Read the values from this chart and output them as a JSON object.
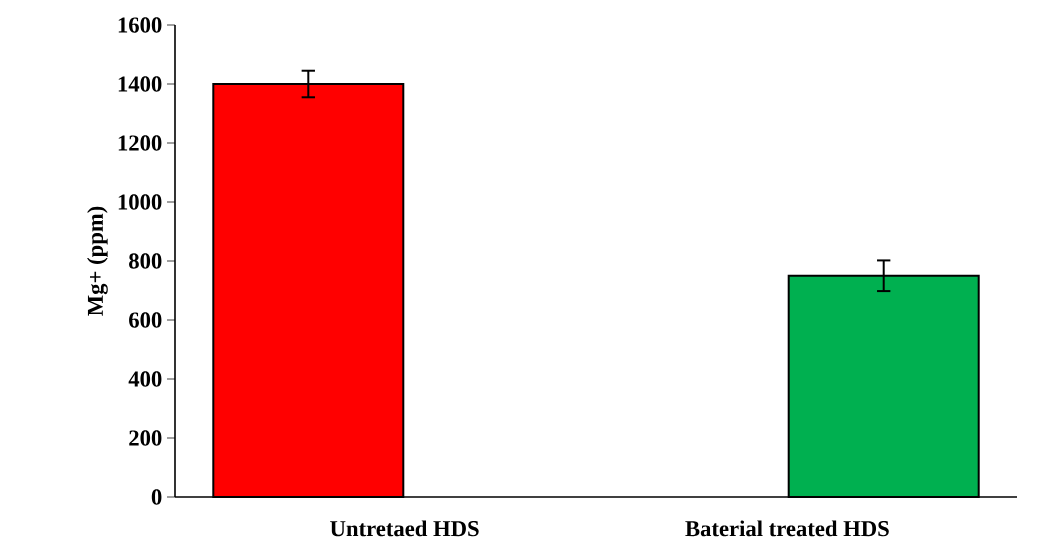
{
  "chart_data": {
    "type": "bar",
    "ylabel": "Mg+ (ppm)",
    "categories": [
      "Untretaed HDS",
      "Baterial treated HDS"
    ],
    "values": [
      1400,
      750
    ],
    "errors": [
      45,
      52
    ],
    "colors": [
      "#ff0000",
      "#00b050"
    ],
    "ylim": [
      0,
      1600
    ],
    "yticks": [
      0,
      200,
      400,
      600,
      800,
      1000,
      1200,
      1400,
      1600
    ],
    "grid": false
  }
}
